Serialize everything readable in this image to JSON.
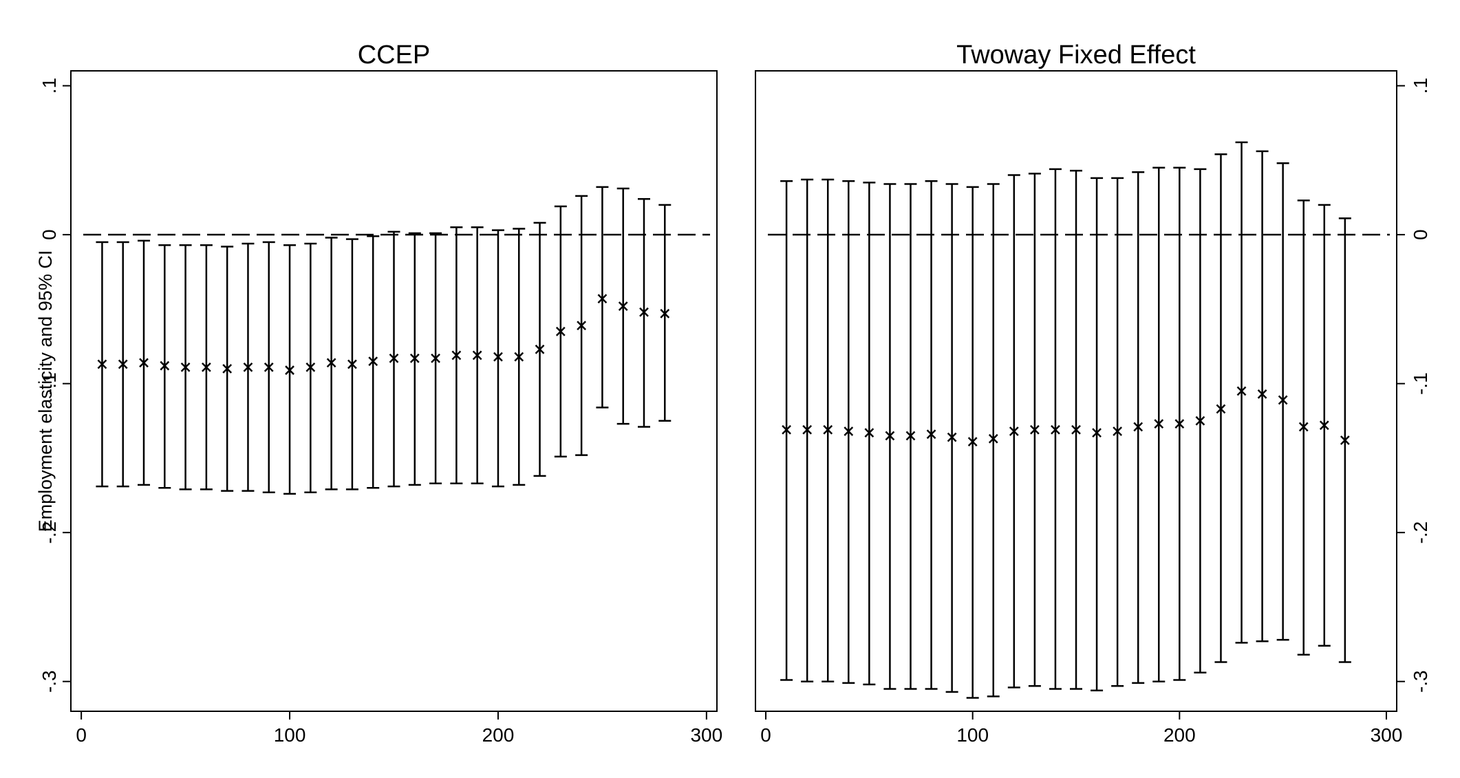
{
  "chart_data": [
    {
      "type": "scatter",
      "title": "CCEP",
      "xlabel": "",
      "ylabel": "Employment elasticity and 95% CI",
      "xlim": [
        -5,
        305
      ],
      "ylim": [
        -0.32,
        0.11
      ],
      "xticks": [
        0,
        100,
        200,
        300
      ],
      "xtick_labels": [
        "0",
        "100",
        "200",
        "300"
      ],
      "yticks": [
        0.1,
        0,
        -0.1,
        -0.2,
        -0.3
      ],
      "ytick_labels": [
        ".1",
        "0",
        "-.1",
        "-.2",
        "-.3"
      ],
      "reference_line": 0,
      "yaxis_side": "left",
      "x": [
        10,
        20,
        30,
        40,
        50,
        60,
        70,
        80,
        90,
        100,
        110,
        120,
        130,
        140,
        150,
        160,
        170,
        180,
        190,
        200,
        210,
        220,
        230,
        240,
        250,
        260,
        270,
        280
      ],
      "estimate": [
        -0.087,
        -0.087,
        -0.086,
        -0.088,
        -0.089,
        -0.089,
        -0.09,
        -0.089,
        -0.089,
        -0.091,
        -0.089,
        -0.086,
        -0.087,
        -0.085,
        -0.083,
        -0.083,
        -0.083,
        -0.081,
        -0.081,
        -0.082,
        -0.082,
        -0.077,
        -0.065,
        -0.061,
        -0.043,
        -0.048,
        -0.052,
        -0.053
      ],
      "ci_low": [
        -0.169,
        -0.169,
        -0.168,
        -0.17,
        -0.171,
        -0.171,
        -0.172,
        -0.172,
        -0.173,
        -0.174,
        -0.173,
        -0.171,
        -0.171,
        -0.17,
        -0.169,
        -0.168,
        -0.167,
        -0.167,
        -0.167,
        -0.169,
        -0.168,
        -0.162,
        -0.149,
        -0.148,
        -0.116,
        -0.127,
        -0.129,
        -0.125
      ],
      "ci_high": [
        -0.005,
        -0.005,
        -0.004,
        -0.007,
        -0.007,
        -0.007,
        -0.008,
        -0.006,
        -0.005,
        -0.007,
        -0.006,
        -0.002,
        -0.003,
        -0.001,
        0.002,
        0.001,
        0.001,
        0.005,
        0.005,
        0.003,
        0.004,
        0.008,
        0.019,
        0.026,
        0.032,
        0.031,
        0.024,
        0.02
      ]
    },
    {
      "type": "scatter",
      "title": "Twoway Fixed Effect",
      "xlabel": "",
      "ylabel": "",
      "xlim": [
        -5,
        305
      ],
      "ylim": [
        -0.32,
        0.11
      ],
      "xticks": [
        0,
        100,
        200,
        300
      ],
      "xtick_labels": [
        "0",
        "100",
        "200",
        "300"
      ],
      "yticks": [
        0.1,
        0,
        -0.1,
        -0.2,
        -0.3
      ],
      "ytick_labels": [
        ".1",
        "0",
        "-.1",
        "-.2",
        "-.3"
      ],
      "reference_line": 0,
      "yaxis_side": "right",
      "x": [
        10,
        20,
        30,
        40,
        50,
        60,
        70,
        80,
        90,
        100,
        110,
        120,
        130,
        140,
        150,
        160,
        170,
        180,
        190,
        200,
        210,
        220,
        230,
        240,
        250,
        260,
        270,
        280
      ],
      "estimate": [
        -0.131,
        -0.131,
        -0.131,
        -0.132,
        -0.133,
        -0.135,
        -0.135,
        -0.134,
        -0.136,
        -0.139,
        -0.137,
        -0.132,
        -0.131,
        -0.131,
        -0.131,
        -0.133,
        -0.132,
        -0.129,
        -0.127,
        -0.127,
        -0.125,
        -0.117,
        -0.105,
        -0.107,
        -0.111,
        -0.129,
        -0.128,
        -0.138
      ],
      "ci_low": [
        -0.299,
        -0.3,
        -0.3,
        -0.301,
        -0.302,
        -0.305,
        -0.305,
        -0.305,
        -0.307,
        -0.311,
        -0.31,
        -0.304,
        -0.303,
        -0.305,
        -0.305,
        -0.306,
        -0.303,
        -0.301,
        -0.3,
        -0.299,
        -0.294,
        -0.287,
        -0.274,
        -0.273,
        -0.272,
        -0.282,
        -0.276,
        -0.287
      ],
      "ci_high": [
        0.036,
        0.037,
        0.037,
        0.036,
        0.035,
        0.034,
        0.034,
        0.036,
        0.034,
        0.032,
        0.034,
        0.04,
        0.041,
        0.044,
        0.043,
        0.038,
        0.038,
        0.042,
        0.045,
        0.045,
        0.044,
        0.054,
        0.062,
        0.056,
        0.048,
        0.023,
        0.02,
        0.011
      ]
    }
  ],
  "colors": {
    "ink": "#000000",
    "background": "#ffffff"
  }
}
